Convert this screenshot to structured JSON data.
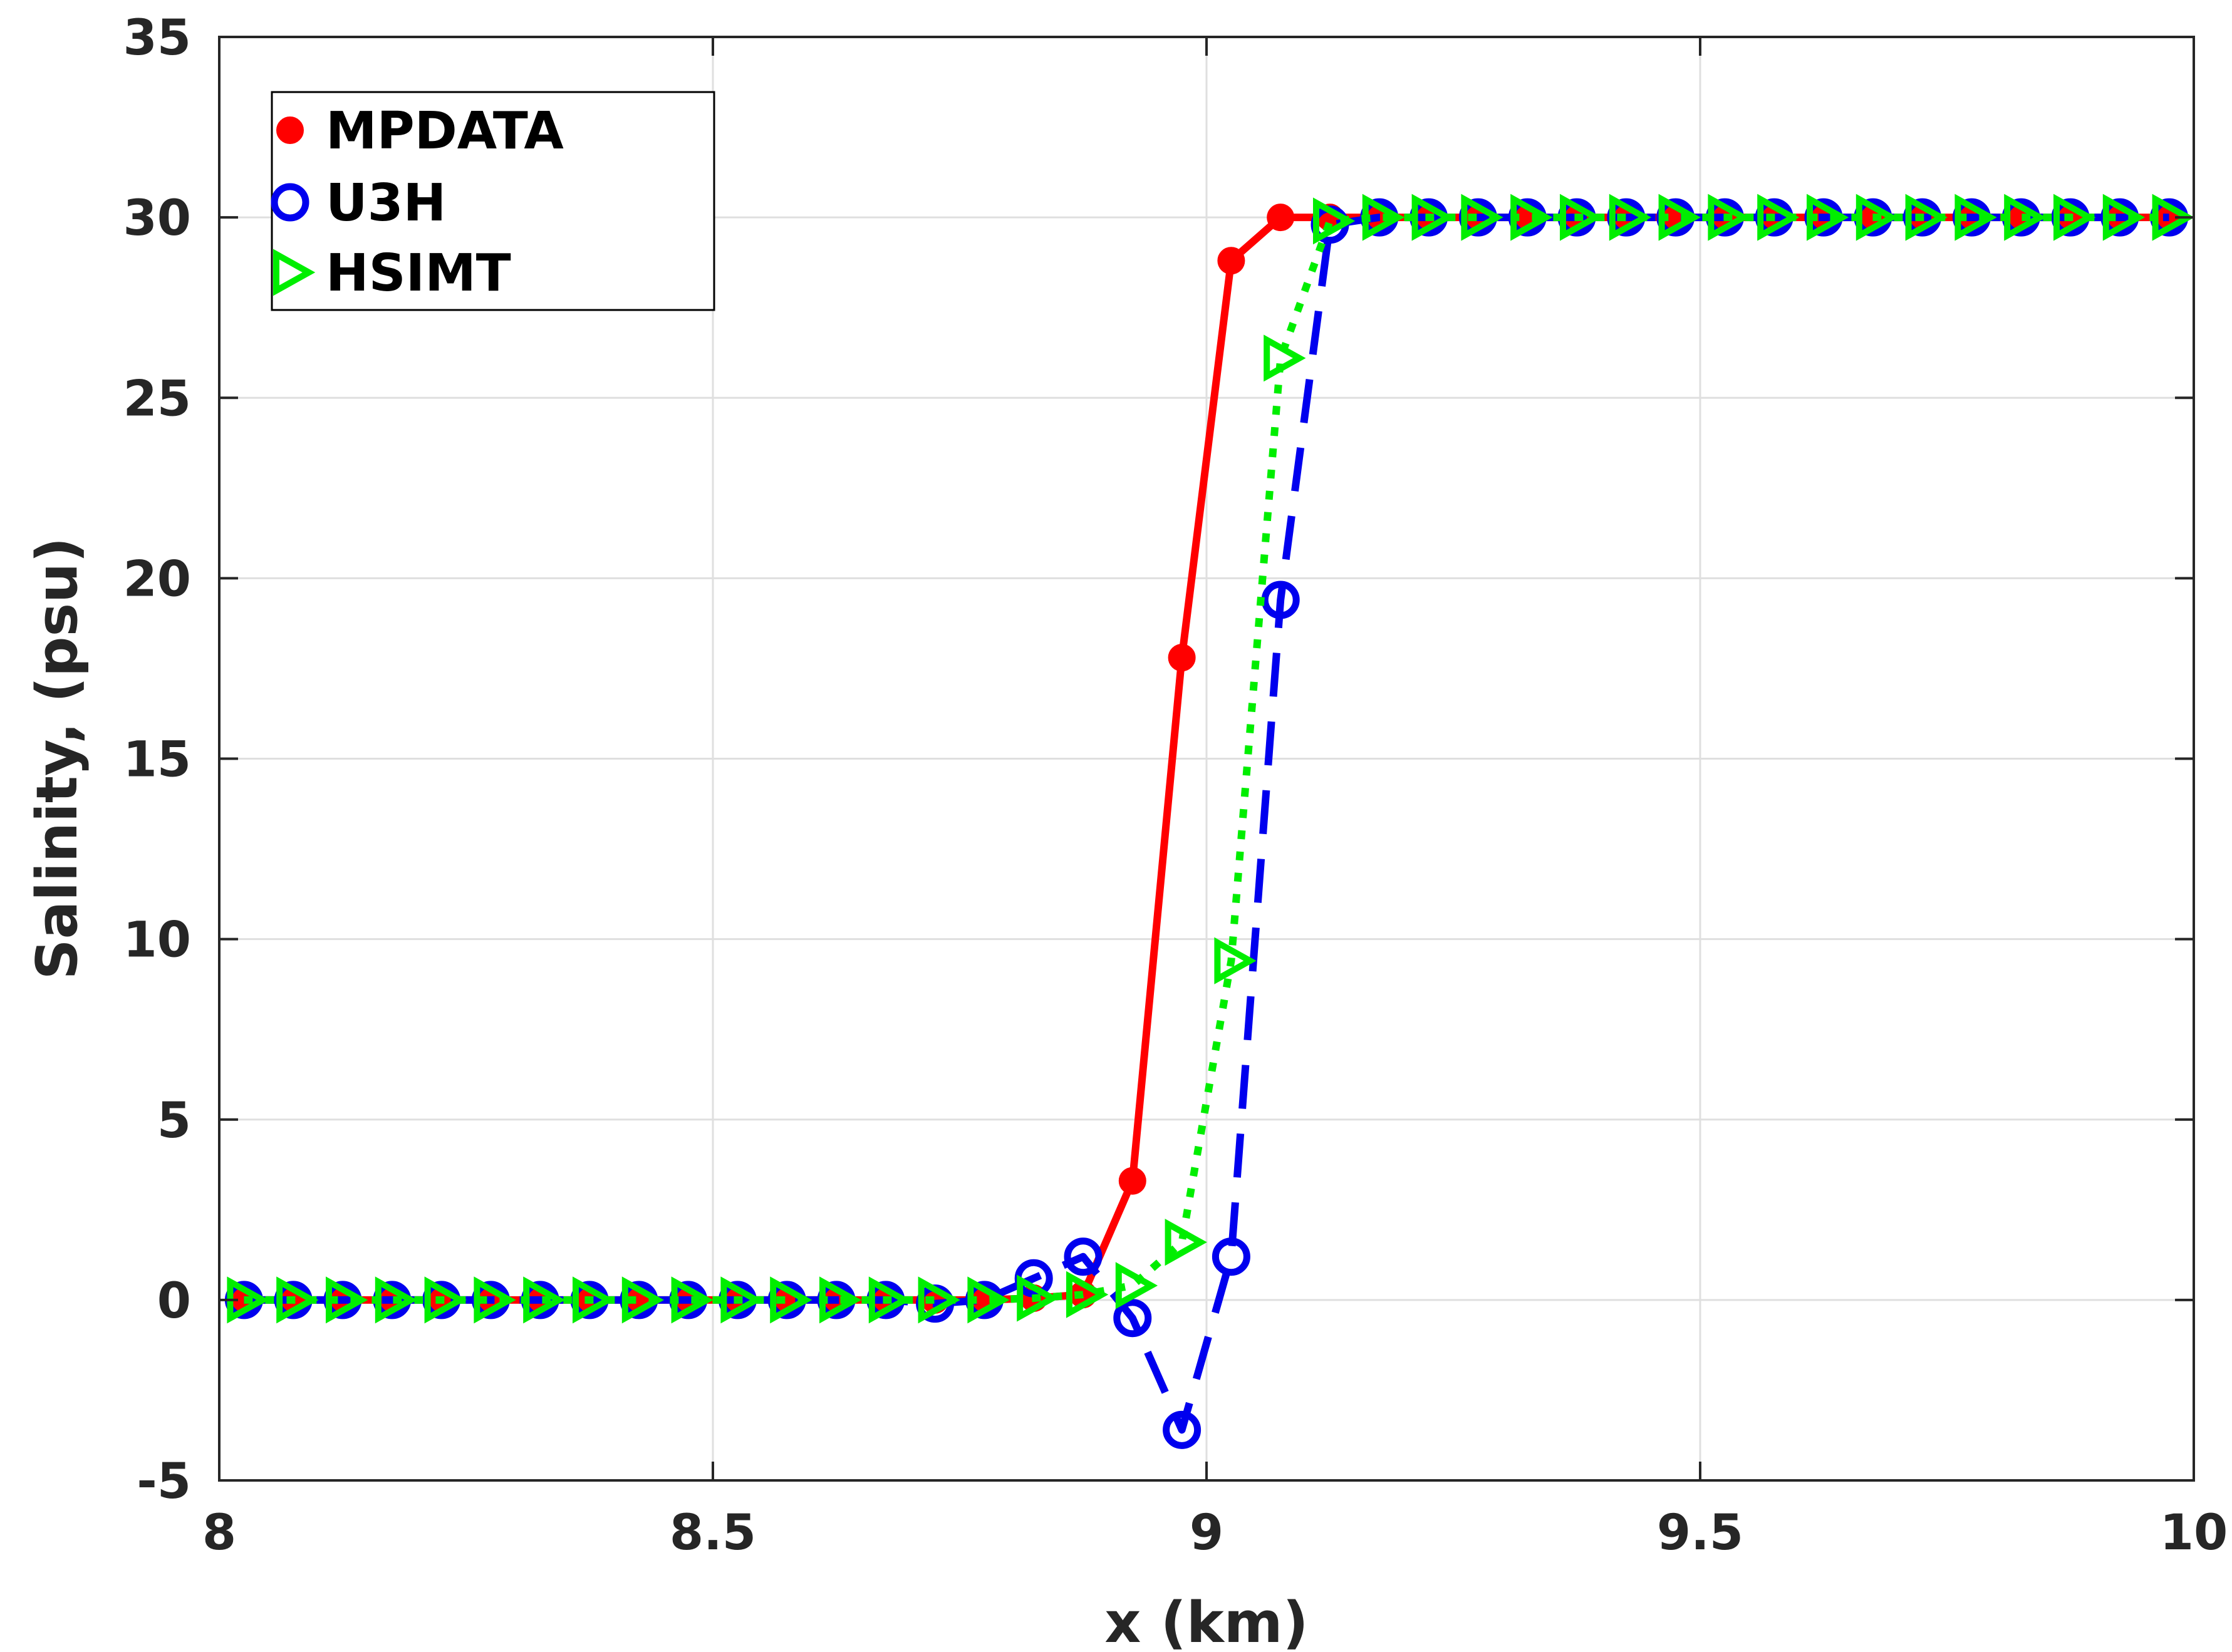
{
  "chart_data": {
    "type": "line",
    "xlabel": "x (km)",
    "ylabel": "Salinity, (psu)",
    "xlim": [
      8,
      10
    ],
    "ylim": [
      -5,
      35
    ],
    "xticks": [
      "8",
      "8.5",
      "9",
      "9.5",
      "10"
    ],
    "yticks": [
      "-5",
      "0",
      "5",
      "10",
      "15",
      "20",
      "25",
      "30",
      "35"
    ],
    "grid": true,
    "legend_position": "top-left",
    "series": [
      {
        "name": "MPDATA",
        "color": "#ff0000",
        "line_style": "solid",
        "marker": "filled-circle",
        "x": [
          8.025,
          8.075,
          8.125,
          8.175,
          8.225,
          8.275,
          8.325,
          8.375,
          8.425,
          8.475,
          8.525,
          8.575,
          8.625,
          8.675,
          8.725,
          8.775,
          8.825,
          8.875,
          8.925,
          8.975,
          9.025,
          9.075,
          9.125,
          9.175,
          9.225,
          9.275,
          9.325,
          9.375,
          9.425,
          9.475,
          9.525,
          9.575,
          9.625,
          9.675,
          9.725,
          9.775,
          9.825,
          9.875,
          9.925,
          9.975
        ],
        "y": [
          0,
          0,
          0,
          0,
          0,
          0,
          0,
          0,
          0,
          0,
          0,
          0,
          0,
          0,
          0,
          0,
          0.05,
          0.15,
          3.3,
          17.8,
          28.8,
          30,
          30,
          30,
          30,
          30,
          30,
          30,
          30,
          30,
          30,
          30,
          30,
          30,
          30,
          30,
          30,
          30,
          30,
          30
        ]
      },
      {
        "name": "U3H",
        "color": "#0000ee",
        "line_style": "dashed",
        "marker": "open-circle",
        "x": [
          8.025,
          8.075,
          8.125,
          8.175,
          8.225,
          8.275,
          8.325,
          8.375,
          8.425,
          8.475,
          8.525,
          8.575,
          8.625,
          8.675,
          8.725,
          8.775,
          8.825,
          8.875,
          8.925,
          8.975,
          9.025,
          9.075,
          9.125,
          9.175,
          9.225,
          9.275,
          9.325,
          9.375,
          9.425,
          9.475,
          9.525,
          9.575,
          9.625,
          9.675,
          9.725,
          9.775,
          9.825,
          9.875,
          9.925,
          9.975
        ],
        "y": [
          0,
          0,
          0,
          0,
          0,
          0,
          0,
          0,
          0,
          0,
          0,
          0,
          0,
          0,
          -0.1,
          0,
          0.6,
          1.2,
          -0.5,
          -3.6,
          1.2,
          19.4,
          29.8,
          30,
          30,
          30,
          30,
          30,
          30,
          30,
          30,
          30,
          30,
          30,
          30,
          30,
          30,
          30,
          30,
          30
        ]
      },
      {
        "name": "HSIMT",
        "color": "#00ee00",
        "line_style": "dotted",
        "marker": "open-triangle-right",
        "x": [
          8.025,
          8.075,
          8.125,
          8.175,
          8.225,
          8.275,
          8.325,
          8.375,
          8.425,
          8.475,
          8.525,
          8.575,
          8.625,
          8.675,
          8.725,
          8.775,
          8.825,
          8.875,
          8.925,
          8.975,
          9.025,
          9.075,
          9.125,
          9.175,
          9.225,
          9.275,
          9.325,
          9.375,
          9.425,
          9.475,
          9.525,
          9.575,
          9.625,
          9.675,
          9.725,
          9.775,
          9.825,
          9.875,
          9.925,
          9.975
        ],
        "y": [
          0,
          0,
          0,
          0,
          0,
          0,
          0,
          0,
          0,
          0,
          0,
          0,
          0,
          0,
          0,
          0,
          0.05,
          0.15,
          0.4,
          1.6,
          9.4,
          26.1,
          29.9,
          30,
          30,
          30,
          30,
          30,
          30,
          30,
          30,
          30,
          30,
          30,
          30,
          30,
          30,
          30,
          30,
          30
        ]
      }
    ]
  }
}
